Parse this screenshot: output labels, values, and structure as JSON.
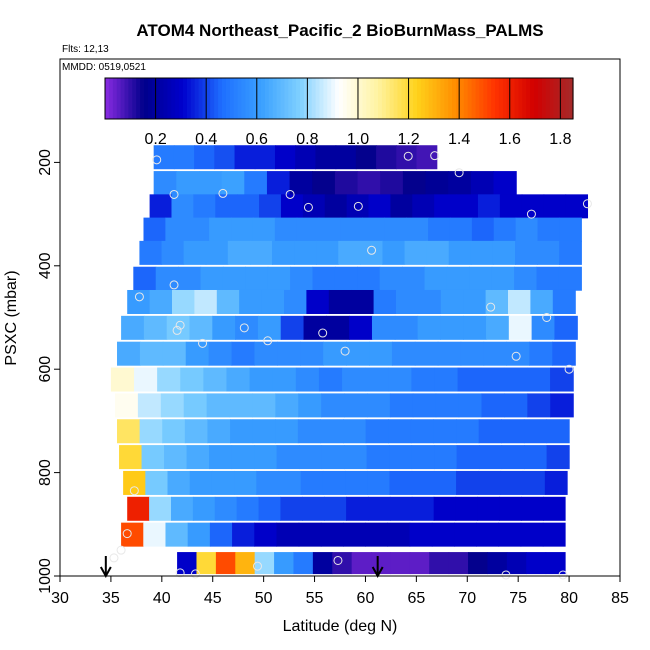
{
  "chart_data": {
    "type": "heatmap",
    "title": "ATOM4 Northeast_Pacific_2 BioBurnMass_PALMS",
    "flights_label": "Flts: 12,13",
    "dates_label": "MMDD: 0519,0521",
    "xlabel": "Latitude (deg N)",
    "ylabel": "PSXC (mbar)",
    "xlim": [
      30,
      85
    ],
    "ylim": [
      1000,
      0
    ],
    "xticks": [
      30,
      35,
      40,
      45,
      50,
      55,
      60,
      65,
      70,
      75,
      80,
      85
    ],
    "yticks": [
      200,
      400,
      600,
      800,
      1000
    ],
    "colorbar": {
      "range": [
        0,
        1.85
      ],
      "ticks": [
        0.2,
        0.4,
        0.6,
        0.8,
        1.0,
        1.2,
        1.4,
        1.6,
        1.8
      ],
      "tick_labels": [
        "0.2",
        "0.4",
        "0.6",
        "0.8",
        "1.0",
        "1.2",
        "1.4",
        "1.6",
        "1.8"
      ],
      "colors": [
        "#8a2be2",
        "#00008b",
        "#0000cd",
        "#1e6fff",
        "#3aa0ff",
        "#7fd0ff",
        "#ffffff",
        "#fff3a0",
        "#ffd21a",
        "#ff8c00",
        "#ff3300",
        "#d20000",
        "#a52a2a"
      ]
    },
    "flight_path_markers_lat": [
      34.5,
      61.2
    ],
    "layers": [
      {
        "p": 190,
        "x0": 39.2,
        "x1": 67.0,
        "v": [
          0.5,
          0.5,
          0.45,
          0.42,
          0.35,
          0.35,
          0.3,
          0.25,
          0.2,
          0.2,
          0.15,
          0.12,
          0.1,
          0.08
        ]
      },
      {
        "p": 240,
        "x0": 39.2,
        "x1": 74.8,
        "v": [
          0.55,
          0.6,
          0.6,
          0.62,
          0.5,
          0.35,
          0.2,
          0.15,
          0.12,
          0.1,
          0.12,
          0.15,
          0.18,
          0.2,
          0.25,
          0.3
        ]
      },
      {
        "p": 285,
        "x0": 38.8,
        "x1": 81.8,
        "v": [
          0.35,
          0.55,
          0.5,
          0.45,
          0.45,
          0.4,
          0.3,
          0.25,
          0.2,
          0.25,
          0.3,
          0.2,
          0.25,
          0.3,
          0.3,
          0.35,
          0.3,
          0.3,
          0.3,
          0.3
        ]
      },
      {
        "p": 330,
        "x0": 38.2,
        "x1": 81.2,
        "v": [
          0.45,
          0.55,
          0.55,
          0.6,
          0.6,
          0.6,
          0.55,
          0.55,
          0.55,
          0.55,
          0.55,
          0.55,
          0.55,
          0.5,
          0.5,
          0.45,
          0.5,
          0.55,
          0.5,
          0.5
        ]
      },
      {
        "p": 375,
        "x0": 37.8,
        "x1": 81.2,
        "v": [
          0.5,
          0.55,
          0.6,
          0.6,
          0.65,
          0.65,
          0.6,
          0.6,
          0.6,
          0.65,
          0.65,
          0.6,
          0.65,
          0.65,
          0.6,
          0.6,
          0.6,
          0.55,
          0.55,
          0.5
        ]
      },
      {
        "p": 425,
        "x0": 37.2,
        "x1": 81.2,
        "v": [
          0.45,
          0.55,
          0.55,
          0.6,
          0.6,
          0.6,
          0.6,
          0.55,
          0.5,
          0.5,
          0.5,
          0.55,
          0.55,
          0.6,
          0.6,
          0.6,
          0.6,
          0.55,
          0.5,
          0.5
        ]
      },
      {
        "p": 470,
        "x0": 36.6,
        "x1": 80.6,
        "v": [
          0.6,
          0.65,
          0.8,
          0.85,
          0.7,
          0.6,
          0.6,
          0.55,
          0.3,
          0.2,
          0.2,
          0.5,
          0.55,
          0.55,
          0.6,
          0.6,
          0.7,
          0.85,
          0.65,
          0.5
        ]
      },
      {
        "p": 520,
        "x0": 36.0,
        "x1": 80.8,
        "v": [
          0.65,
          0.7,
          0.75,
          0.7,
          0.6,
          0.55,
          0.6,
          0.4,
          0.2,
          0.2,
          0.3,
          0.55,
          0.55,
          0.6,
          0.6,
          0.6,
          0.65,
          0.9,
          0.55,
          0.45
        ]
      },
      {
        "p": 570,
        "x0": 35.6,
        "x1": 80.6,
        "v": [
          0.65,
          0.7,
          0.7,
          0.6,
          0.55,
          0.5,
          0.55,
          0.55,
          0.55,
          0.6,
          0.6,
          0.6,
          0.55,
          0.55,
          0.55,
          0.55,
          0.55,
          0.55,
          0.5,
          0.45
        ]
      },
      {
        "p": 620,
        "x0": 35.0,
        "x1": 80.4,
        "v": [
          1.0,
          0.9,
          0.8,
          0.75,
          0.7,
          0.65,
          0.6,
          0.6,
          0.55,
          0.5,
          0.55,
          0.55,
          0.55,
          0.5,
          0.5,
          0.45,
          0.45,
          0.45,
          0.45,
          0.4
        ]
      },
      {
        "p": 670,
        "x0": 35.4,
        "x1": 80.4,
        "v": [
          0.95,
          0.85,
          0.8,
          0.75,
          0.7,
          0.7,
          0.7,
          0.65,
          0.6,
          0.55,
          0.55,
          0.55,
          0.5,
          0.5,
          0.5,
          0.5,
          0.45,
          0.45,
          0.4,
          0.35
        ]
      },
      {
        "p": 720,
        "x0": 35.6,
        "x1": 80.0,
        "v": [
          1.15,
          0.8,
          0.75,
          0.7,
          0.65,
          0.6,
          0.6,
          0.6,
          0.55,
          0.55,
          0.55,
          0.5,
          0.5,
          0.5,
          0.5,
          0.5,
          0.45,
          0.45,
          0.45,
          0.45
        ]
      },
      {
        "p": 770,
        "x0": 35.8,
        "x1": 80.0,
        "v": [
          1.2,
          0.75,
          0.7,
          0.65,
          0.6,
          0.6,
          0.6,
          0.55,
          0.55,
          0.55,
          0.55,
          0.5,
          0.5,
          0.5,
          0.5,
          0.45,
          0.45,
          0.45,
          0.45,
          0.4
        ]
      },
      {
        "p": 820,
        "x0": 36.2,
        "x1": 79.8,
        "v": [
          1.25,
          0.75,
          0.65,
          0.6,
          0.6,
          0.6,
          0.55,
          0.55,
          0.5,
          0.5,
          0.5,
          0.5,
          0.45,
          0.45,
          0.45,
          0.4,
          0.4,
          0.4,
          0.4,
          0.35
        ]
      },
      {
        "p": 870,
        "x0": 36.6,
        "x1": 79.6,
        "v": [
          1.6,
          0.8,
          0.65,
          0.6,
          0.55,
          0.5,
          0.45,
          0.4,
          0.4,
          0.4,
          0.35,
          0.35,
          0.35,
          0.35,
          0.3,
          0.3,
          0.3,
          0.3,
          0.3,
          0.3
        ]
      },
      {
        "p": 920,
        "x0": 36.0,
        "x1": 79.6,
        "v": [
          1.5,
          0.9,
          0.7,
          0.6,
          0.45,
          0.35,
          0.3,
          0.25,
          0.25,
          0.25,
          0.25,
          0.25,
          0.25,
          0.3,
          0.3,
          0.3,
          0.3,
          0.3,
          0.3,
          0.3
        ]
      },
      {
        "p": 975,
        "x0": 41.5,
        "x1": 79.6,
        "v": [
          0.3,
          1.2,
          1.5,
          1.3,
          0.8,
          0.6,
          0.5,
          0.2,
          0.1,
          0.05,
          0.05,
          0.05,
          0.05,
          0.1,
          0.1,
          0.15,
          0.2,
          0.25,
          0.3,
          0.3
        ]
      }
    ],
    "white_band": {
      "p": 975,
      "x0": 35.2,
      "x1": 41.5
    },
    "points": [
      [
        39.5,
        195
      ],
      [
        64.2,
        188
      ],
      [
        66.8,
        187
      ],
      [
        69.2,
        220
      ],
      [
        41.2,
        262
      ],
      [
        46.0,
        260
      ],
      [
        52.6,
        262
      ],
      [
        54.4,
        287
      ],
      [
        59.3,
        285
      ],
      [
        76.3,
        300
      ],
      [
        81.8,
        280
      ],
      [
        60.6,
        370
      ],
      [
        37.8,
        460
      ],
      [
        41.2,
        437
      ],
      [
        41.5,
        525
      ],
      [
        41.8,
        515
      ],
      [
        44.0,
        550
      ],
      [
        48.1,
        520
      ],
      [
        50.4,
        545
      ],
      [
        55.8,
        530
      ],
      [
        58.0,
        565
      ],
      [
        72.3,
        480
      ],
      [
        77.8,
        500
      ],
      [
        74.8,
        575
      ],
      [
        80.0,
        600
      ],
      [
        36.6,
        918
      ],
      [
        37.3,
        835
      ],
      [
        36.0,
        950
      ],
      [
        41.8,
        994
      ],
      [
        43.3,
        996
      ],
      [
        49.4,
        981
      ],
      [
        57.3,
        970
      ],
      [
        73.8,
        998
      ],
      [
        79.4,
        998
      ],
      [
        35.3,
        965
      ]
    ]
  }
}
